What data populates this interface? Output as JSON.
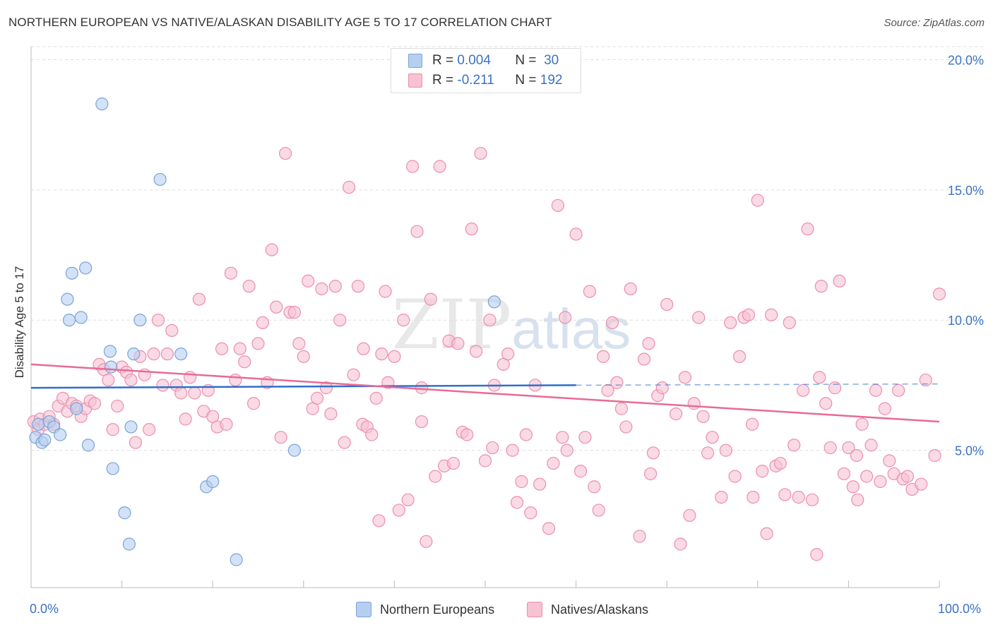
{
  "title": "NORTHERN EUROPEAN VS NATIVE/ALASKAN DISABILITY AGE 5 TO 17 CORRELATION CHART",
  "source": "Source: ZipAtlas.com",
  "watermark": {
    "zip": "ZIP",
    "atlas": "atlas"
  },
  "legend": {
    "r_label": "R =",
    "n_label": "N =",
    "rows": [
      {
        "r": "0.004",
        "n": "30",
        "color": "#a9c6ec"
      },
      {
        "r": "-0.211",
        "n": "192",
        "color": "#f5b4c8"
      }
    ]
  },
  "colors": {
    "blue_fill": "#b6cff0",
    "blue_stroke": "#7aa3d9",
    "blue_line": "#2f6fcc",
    "pink_fill": "#f7c2d2",
    "pink_stroke": "#eb8fae",
    "pink_line": "#e86a96",
    "tick_label": "#3a72c4",
    "grid": "#dddddd"
  },
  "chart_data": {
    "type": "scatter",
    "title": "NORTHERN EUROPEAN VS NATIVE/ALASKAN DISABILITY AGE 5 TO 17 CORRELATION CHART",
    "xlabel": "",
    "ylabel": "Disability Age 5 to 17",
    "xlim": [
      0,
      100
    ],
    "ylim": [
      0,
      20.5
    ],
    "x_ticks_labels": [
      "0.0%",
      "100.0%"
    ],
    "y_ticks": [
      5,
      10,
      15,
      20
    ],
    "y_tick_labels": [
      "5.0%",
      "10.0%",
      "15.0%",
      "20.0%"
    ],
    "grid": true,
    "legend_placement": "bottom",
    "series": [
      {
        "name": "Northern Europeans",
        "color": "#a9c6ec",
        "trend": {
          "x": [
            0,
            60
          ],
          "y": [
            7.4,
            7.5
          ],
          "dashed_to": [
            100,
            7.55
          ]
        },
        "points": [
          [
            0.5,
            5.5
          ],
          [
            0.8,
            6.0
          ],
          [
            1.2,
            5.3
          ],
          [
            1.5,
            5.4
          ],
          [
            2.0,
            6.1
          ],
          [
            2.5,
            5.9
          ],
          [
            3.2,
            5.6
          ],
          [
            4.0,
            10.8
          ],
          [
            4.2,
            10.0
          ],
          [
            4.5,
            11.8
          ],
          [
            5.0,
            6.6
          ],
          [
            5.5,
            10.1
          ],
          [
            6.0,
            12.0
          ],
          [
            6.3,
            5.2
          ],
          [
            7.8,
            18.3
          ],
          [
            8.7,
            8.8
          ],
          [
            8.8,
            8.2
          ],
          [
            9.0,
            4.3
          ],
          [
            10.3,
            2.6
          ],
          [
            10.8,
            1.4
          ],
          [
            11.0,
            5.9
          ],
          [
            11.3,
            8.7
          ],
          [
            12.0,
            10.0
          ],
          [
            14.2,
            15.4
          ],
          [
            16.5,
            8.7
          ],
          [
            19.3,
            3.6
          ],
          [
            20.0,
            3.8
          ],
          [
            22.6,
            0.8
          ],
          [
            29.0,
            5.0
          ],
          [
            51.0,
            10.7
          ]
        ]
      },
      {
        "name": "Natives/Alaskans",
        "color": "#f5b4c8",
        "trend": {
          "x": [
            0,
            100
          ],
          "y": [
            8.3,
            6.1
          ]
        },
        "points": [
          [
            0.3,
            6.1
          ],
          [
            0.8,
            5.8
          ],
          [
            1.0,
            6.2
          ],
          [
            1.5,
            6.0
          ],
          [
            2.0,
            6.3
          ],
          [
            2.5,
            6.0
          ],
          [
            3.0,
            6.7
          ],
          [
            3.5,
            7.0
          ],
          [
            4.0,
            6.5
          ],
          [
            4.5,
            6.8
          ],
          [
            5.0,
            6.7
          ],
          [
            5.5,
            6.3
          ],
          [
            6.0,
            6.6
          ],
          [
            6.5,
            6.9
          ],
          [
            7.0,
            6.8
          ],
          [
            7.5,
            8.3
          ],
          [
            8.0,
            8.1
          ],
          [
            8.5,
            7.7
          ],
          [
            9.0,
            5.8
          ],
          [
            9.5,
            6.7
          ],
          [
            10.0,
            8.2
          ],
          [
            10.5,
            8.0
          ],
          [
            11.0,
            7.7
          ],
          [
            11.5,
            5.3
          ],
          [
            12.0,
            8.6
          ],
          [
            12.5,
            7.9
          ],
          [
            13.0,
            5.8
          ],
          [
            13.5,
            8.7
          ],
          [
            14.0,
            10.0
          ],
          [
            14.5,
            7.5
          ],
          [
            15.0,
            8.7
          ],
          [
            15.5,
            9.6
          ],
          [
            16.0,
            7.5
          ],
          [
            16.5,
            7.2
          ],
          [
            17.0,
            6.2
          ],
          [
            17.5,
            7.8
          ],
          [
            18.0,
            7.2
          ],
          [
            18.5,
            10.8
          ],
          [
            19.0,
            6.5
          ],
          [
            19.5,
            7.3
          ],
          [
            20.0,
            6.3
          ],
          [
            20.5,
            5.9
          ],
          [
            21.0,
            8.9
          ],
          [
            21.5,
            6.0
          ],
          [
            22.0,
            11.8
          ],
          [
            22.5,
            7.7
          ],
          [
            23.0,
            8.9
          ],
          [
            23.5,
            8.4
          ],
          [
            24.0,
            11.3
          ],
          [
            24.5,
            6.8
          ],
          [
            25.0,
            9.1
          ],
          [
            25.5,
            9.9
          ],
          [
            26.0,
            7.6
          ],
          [
            26.5,
            12.7
          ],
          [
            27.0,
            10.5
          ],
          [
            27.5,
            5.5
          ],
          [
            28.0,
            16.4
          ],
          [
            28.5,
            10.3
          ],
          [
            29.0,
            10.3
          ],
          [
            29.5,
            9.1
          ],
          [
            30.0,
            8.6
          ],
          [
            30.5,
            11.5
          ],
          [
            31.0,
            6.6
          ],
          [
            31.5,
            7.0
          ],
          [
            32.0,
            11.2
          ],
          [
            32.5,
            7.4
          ],
          [
            33.0,
            6.4
          ],
          [
            34.0,
            10.0
          ],
          [
            34.5,
            5.3
          ],
          [
            35.0,
            15.1
          ],
          [
            35.5,
            7.9
          ],
          [
            36.0,
            11.3
          ],
          [
            36.5,
            6.0
          ],
          [
            37.0,
            5.9
          ],
          [
            37.5,
            5.6
          ],
          [
            38.0,
            7.0
          ],
          [
            38.3,
            2.3
          ],
          [
            38.6,
            8.7
          ],
          [
            39.0,
            11.1
          ],
          [
            39.3,
            7.6
          ],
          [
            40.0,
            8.6
          ],
          [
            40.5,
            2.7
          ],
          [
            41.0,
            10.0
          ],
          [
            41.5,
            3.1
          ],
          [
            42.0,
            15.9
          ],
          [
            42.5,
            13.4
          ],
          [
            43.0,
            6.1
          ],
          [
            43.5,
            1.5
          ],
          [
            44.0,
            10.8
          ],
          [
            44.5,
            4.0
          ],
          [
            45.0,
            15.9
          ],
          [
            45.5,
            4.4
          ],
          [
            46.0,
            9.2
          ],
          [
            46.5,
            4.5
          ],
          [
            47.0,
            9.1
          ],
          [
            47.5,
            5.7
          ],
          [
            48.0,
            5.6
          ],
          [
            48.5,
            13.5
          ],
          [
            49.0,
            8.8
          ],
          [
            49.5,
            16.4
          ],
          [
            50.0,
            4.6
          ],
          [
            50.5,
            10.0
          ],
          [
            51.0,
            7.5
          ],
          [
            52.0,
            8.3
          ],
          [
            52.5,
            8.7
          ],
          [
            53.0,
            5.0
          ],
          [
            53.5,
            3.0
          ],
          [
            54.0,
            3.8
          ],
          [
            54.5,
            5.6
          ],
          [
            55.0,
            2.6
          ],
          [
            55.5,
            7.5
          ],
          [
            56.0,
            3.7
          ],
          [
            57.0,
            2.0
          ],
          [
            57.5,
            4.5
          ],
          [
            58.0,
            14.4
          ],
          [
            58.5,
            5.5
          ],
          [
            59.0,
            5.0
          ],
          [
            60.0,
            13.3
          ],
          [
            60.5,
            4.2
          ],
          [
            61.0,
            5.5
          ],
          [
            61.5,
            11.1
          ],
          [
            62.0,
            3.6
          ],
          [
            62.5,
            2.7
          ],
          [
            63.0,
            8.6
          ],
          [
            63.5,
            7.3
          ],
          [
            64.0,
            9.9
          ],
          [
            64.5,
            7.6
          ],
          [
            65.0,
            6.6
          ],
          [
            65.5,
            5.9
          ],
          [
            66.0,
            11.2
          ],
          [
            67.0,
            1.7
          ],
          [
            67.5,
            8.5
          ],
          [
            68.0,
            9.1
          ],
          [
            68.5,
            4.9
          ],
          [
            69.0,
            7.1
          ],
          [
            69.5,
            7.4
          ],
          [
            70.0,
            10.6
          ],
          [
            71.0,
            6.4
          ],
          [
            71.5,
            1.4
          ],
          [
            72.0,
            7.8
          ],
          [
            72.5,
            2.5
          ],
          [
            73.0,
            6.8
          ],
          [
            73.5,
            10.1
          ],
          [
            74.0,
            6.3
          ],
          [
            74.5,
            4.9
          ],
          [
            75.0,
            5.5
          ],
          [
            76.0,
            3.2
          ],
          [
            76.5,
            5.0
          ],
          [
            77.0,
            9.9
          ],
          [
            77.5,
            4.0
          ],
          [
            78.0,
            8.6
          ],
          [
            78.5,
            10.1
          ],
          [
            79.0,
            10.2
          ],
          [
            79.5,
            3.2
          ],
          [
            80.0,
            14.6
          ],
          [
            80.5,
            4.2
          ],
          [
            81.0,
            1.8
          ],
          [
            81.5,
            10.2
          ],
          [
            82.0,
            4.4
          ],
          [
            82.5,
            4.5
          ],
          [
            83.0,
            3.3
          ],
          [
            83.5,
            9.9
          ],
          [
            84.0,
            5.2
          ],
          [
            84.5,
            3.2
          ],
          [
            85.0,
            7.3
          ],
          [
            85.5,
            13.5
          ],
          [
            86.0,
            3.1
          ],
          [
            86.5,
            1.0
          ],
          [
            87.0,
            11.3
          ],
          [
            87.5,
            6.8
          ],
          [
            88.0,
            5.1
          ],
          [
            88.5,
            7.4
          ],
          [
            89.0,
            11.5
          ],
          [
            89.5,
            4.1
          ],
          [
            90.0,
            5.1
          ],
          [
            90.5,
            3.6
          ],
          [
            91.0,
            3.1
          ],
          [
            91.5,
            6.0
          ],
          [
            92.0,
            4.0
          ],
          [
            92.5,
            5.2
          ],
          [
            93.0,
            7.3
          ],
          [
            93.5,
            3.8
          ],
          [
            94.0,
            6.6
          ],
          [
            94.5,
            4.6
          ],
          [
            95.0,
            4.1
          ],
          [
            95.5,
            7.3
          ],
          [
            96.0,
            3.9
          ],
          [
            96.5,
            4.0
          ],
          [
            97.0,
            3.5
          ],
          [
            98.0,
            3.7
          ],
          [
            98.5,
            7.7
          ],
          [
            99.5,
            4.8
          ],
          [
            100.0,
            11.0
          ],
          [
            86.8,
            7.8
          ],
          [
            43.0,
            7.4
          ],
          [
            33.5,
            11.3
          ],
          [
            36.6,
            8.9
          ],
          [
            50.8,
            5.1
          ],
          [
            58.8,
            10.1
          ],
          [
            68.2,
            4.1
          ],
          [
            79.4,
            6.0
          ],
          [
            90.9,
            4.8
          ]
        ]
      }
    ]
  }
}
